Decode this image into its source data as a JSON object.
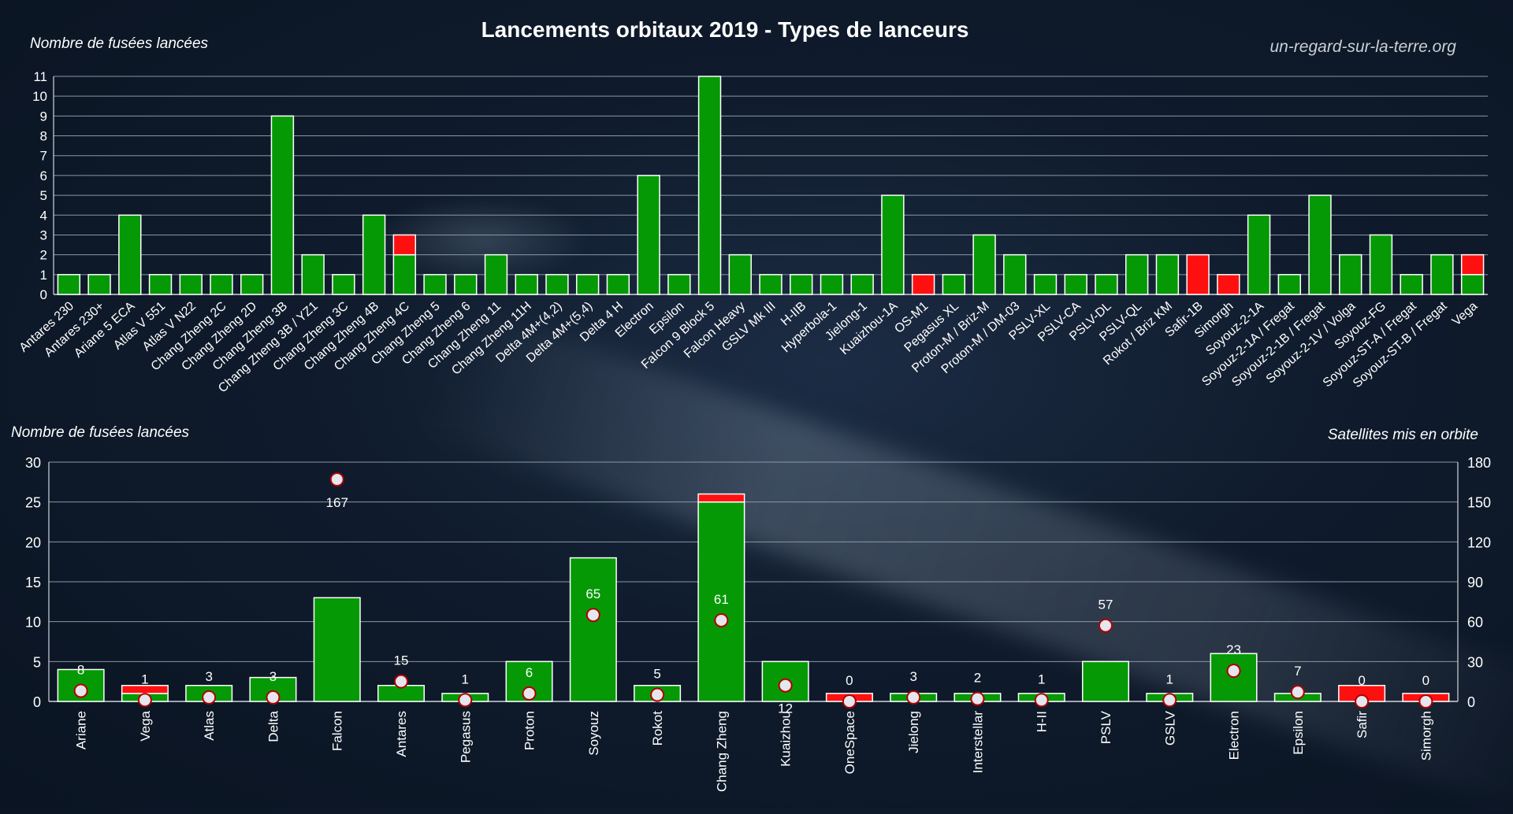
{
  "page": {
    "title": "Lancements orbitaux 2019 - Types de lanceurs",
    "watermark": "un-regard-sur-la-terre.org"
  },
  "colors": {
    "success": "#069906",
    "failure": "#ff1010",
    "marker": "#e6e6ee",
    "marker_ring": "#b00000",
    "text": "#ffffff"
  },
  "chart_data": [
    {
      "type": "bar",
      "stacked": true,
      "ylabel": "Nombre de fusées lancées",
      "ylim": [
        0,
        11
      ],
      "yticks": [
        0,
        1,
        2,
        3,
        4,
        5,
        6,
        7,
        8,
        9,
        10,
        11
      ],
      "grid": true,
      "categories": [
        "Antares 230",
        "Antares 230+",
        "Ariane 5 ECA",
        "Atlas V 551",
        "Atlas V N22",
        "Chang Zheng 2C",
        "Chang Zheng 2D",
        "Chang Zheng 3B",
        "Chang Zheng 3B / YZ1",
        "Chang Zheng 3C",
        "Chang Zheng 4B",
        "Chang Zheng 4C",
        "Chang Zheng 5",
        "Chang Zheng 6",
        "Chang Zheng 11",
        "Chang Zheng 11H",
        "Delta 4M+(4,2)",
        "Delta 4M+(5,4)",
        "Delta 4 H",
        "Electron",
        "Epsilon",
        "Falcon 9 Block 5",
        "Falcon Heavy",
        "GSLV Mk III",
        "H-IIB",
        "Hyperbola-1",
        "Jielong-1",
        "Kuaizhou-1A",
        "OS-M1",
        "Pegasus XL",
        "Proton-M / Briz-M",
        "Proton-M / DM-03",
        "PSLV-XL",
        "PSLV-CA",
        "PSLV-DL",
        "PSLV-QL",
        "Rokot / Briz KM",
        "Safir-1B",
        "Simorgh",
        "Soyouz-2-1A",
        "Soyouz-2-1A / Fregat",
        "Soyouz-2-1B / Fregat",
        "Soyouz-2-1V / Volga",
        "Soyouz-FG",
        "Soyouz-ST-A / Fregat",
        "Soyouz-ST-B / Fregat",
        "Vega"
      ],
      "series": [
        {
          "values": [
            1,
            1,
            4,
            1,
            1,
            1,
            1,
            9,
            2,
            1,
            4,
            2,
            1,
            1,
            2,
            1,
            1,
            1,
            1,
            6,
            1,
            11,
            2,
            1,
            1,
            1,
            1,
            5,
            0,
            1,
            3,
            2,
            1,
            1,
            1,
            2,
            2,
            0,
            0,
            4,
            1,
            5,
            2,
            3,
            1,
            2,
            1
          ]
        },
        {
          "values": [
            0,
            0,
            0,
            0,
            0,
            0,
            0,
            0,
            0,
            0,
            0,
            1,
            0,
            0,
            0,
            0,
            0,
            0,
            0,
            0,
            0,
            0,
            0,
            0,
            0,
            0,
            0,
            0,
            1,
            0,
            0,
            0,
            0,
            0,
            0,
            0,
            0,
            2,
            1,
            0,
            0,
            0,
            0,
            0,
            0,
            0,
            1
          ]
        }
      ]
    },
    {
      "type": "bar",
      "stacked": true,
      "ylabel": "Nombre de fusées lancées",
      "y2label": "Satellites mis en orbite",
      "ylim": [
        0,
        30
      ],
      "yticks": [
        0,
        5,
        10,
        15,
        20,
        25,
        30
      ],
      "y2lim": [
        0,
        180
      ],
      "y2ticks": [
        0,
        30,
        60,
        90,
        120,
        150,
        180
      ],
      "grid": true,
      "categories": [
        "Ariane",
        "Vega",
        "Atlas",
        "Delta",
        "Falcon",
        "Antares",
        "Pegasus",
        "Proton",
        "Soyouz",
        "Rokot",
        "Chang Zheng",
        "Kuaizhou",
        "OneSpace",
        "Jielong",
        "Interstellar",
        "H-II",
        "PSLV",
        "GSLV",
        "Electron",
        "Epsilon",
        "Safir",
        "Simorgh"
      ],
      "series": [
        {
          "values": [
            4,
            1,
            2,
            3,
            13,
            2,
            1,
            5,
            18,
            2,
            25,
            5,
            0,
            1,
            1,
            1,
            5,
            1,
            6,
            1,
            0,
            0
          ]
        },
        {
          "values": [
            0,
            1,
            0,
            0,
            0,
            0,
            0,
            0,
            0,
            0,
            1,
            0,
            1,
            0,
            0,
            0,
            0,
            0,
            0,
            0,
            2,
            1
          ]
        }
      ],
      "satellites": {
        "values": [
          8,
          1,
          3,
          3,
          167,
          15,
          1,
          6,
          65,
          5,
          61,
          12,
          0,
          3,
          2,
          1,
          57,
          1,
          23,
          7,
          0,
          0
        ],
        "labels": [
          "8",
          "1",
          "3",
          "3",
          "167",
          "15",
          "1",
          "6",
          "65",
          "5",
          "61",
          "12",
          "0",
          "3",
          "2",
          "1",
          "57",
          "1",
          "23",
          "7",
          "0",
          "0"
        ]
      }
    }
  ]
}
